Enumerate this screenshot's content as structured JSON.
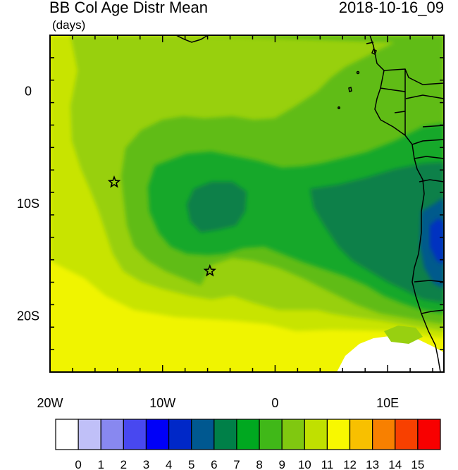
{
  "header": {
    "title": "BB Col Age Distr Mean",
    "timestamp": "2018-10-16_09",
    "units": "(days)"
  },
  "map": {
    "lon_range": [
      -20,
      15
    ],
    "lat_range": [
      -25,
      5
    ],
    "x_ticks": [
      {
        "lon": -20,
        "label": "20W"
      },
      {
        "lon": -10,
        "label": "10W"
      },
      {
        "lon": 0,
        "label": "0"
      },
      {
        "lon": 10,
        "label": "10E"
      }
    ],
    "y_ticks": [
      {
        "lat": 0,
        "label": "0"
      },
      {
        "lat": -10,
        "label": "10S"
      },
      {
        "lat": -20,
        "label": "20S"
      }
    ],
    "markers": [
      {
        "name": "star-marker-west",
        "lon": -14.3,
        "lat": -8.1
      },
      {
        "name": "star-marker-south",
        "lon": -5.8,
        "lat": -16.0
      }
    ]
  },
  "colorbar": {
    "labels": [
      "0",
      "1",
      "2",
      "3",
      "4",
      "5",
      "6",
      "7",
      "8",
      "9",
      "10",
      "11",
      "12",
      "13",
      "14",
      "15"
    ],
    "colors": [
      "#ffffff",
      "#c0c0f8",
      "#8888f0",
      "#4848f0",
      "#0000f8",
      "#0028c8",
      "#005890",
      "#008048",
      "#00a820",
      "#40b818",
      "#80c810",
      "#c0e000",
      "#f8f800",
      "#f8c000",
      "#f88000",
      "#f84000",
      "#f80000"
    ]
  }
}
